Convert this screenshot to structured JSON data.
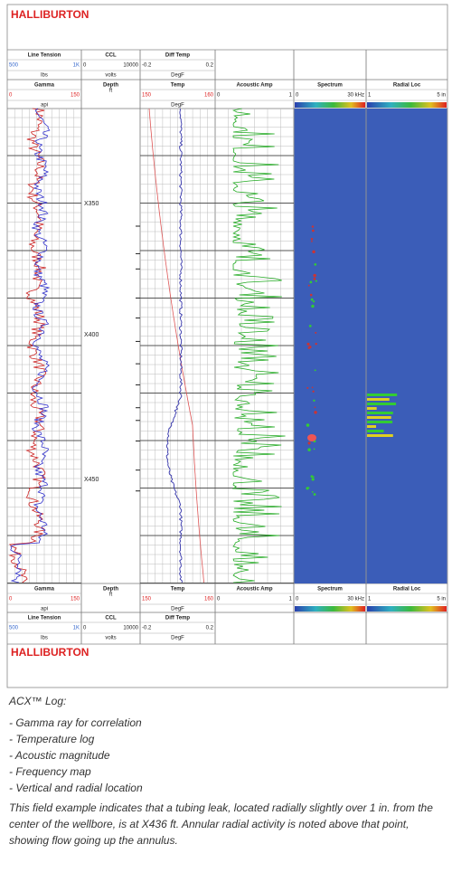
{
  "header": {
    "logo": "HALLIBURTON"
  },
  "scales_row1": [
    {
      "name": "Line Tension",
      "min": "500",
      "max": "1K",
      "unit": "lbs"
    },
    {
      "name": "CCL",
      "min": "0",
      "max": "10000",
      "unit": "volts"
    },
    {
      "name": "Diff Temp",
      "min": "-0.2",
      "max": "0.2",
      "unit": "DegF"
    }
  ],
  "scales_row2": [
    {
      "name": "Gamma",
      "min": "0",
      "max": "150",
      "unit": "api"
    },
    {
      "name": "Depth",
      "unit": "ft"
    },
    {
      "name": "Temp",
      "min": "150",
      "max": "160",
      "unit": "DegF"
    },
    {
      "name": "Acoustic Amp",
      "min": "0",
      "max": "1"
    },
    {
      "name": "Spectrum",
      "min": "0",
      "max": "30 kHz"
    },
    {
      "name": "Radial Loc",
      "min": "1",
      "max": "5 in"
    }
  ],
  "depth_labels": [
    "X350",
    "X400",
    "X450"
  ],
  "caption": {
    "title": "ACX™ Log:",
    "items": [
      "- Gamma ray for correlation",
      "- Temperature log",
      "- Acoustic magnitude",
      "- Frequency  map",
      "- Vertical and radial location"
    ],
    "text": "This field example indicates that a tubing leak, located radially slightly over 1 in. from the center of the wellbore, is at X436 ft. Annular radial activity is noted above that point, showing flow going up the annulus."
  }
}
